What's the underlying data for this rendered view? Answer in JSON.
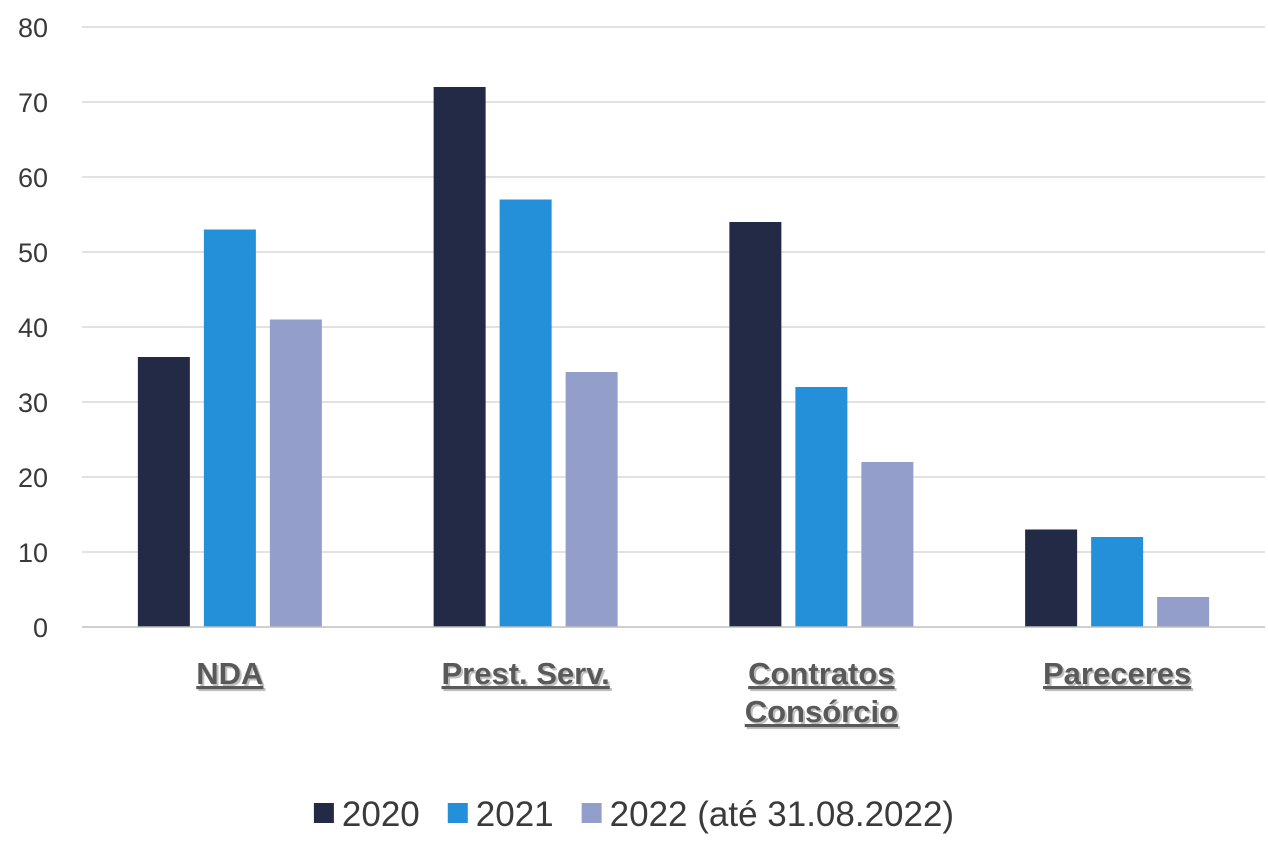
{
  "chart_data": {
    "type": "bar",
    "categories": [
      [
        "NDA"
      ],
      [
        "Prest. Serv."
      ],
      [
        "Contratos",
        "Consórcio"
      ],
      [
        "Pareceres"
      ]
    ],
    "series": [
      {
        "name": "2020",
        "values": [
          36,
          72,
          54,
          13
        ],
        "color": "#222a45"
      },
      {
        "name": "2021",
        "values": [
          53,
          57,
          32,
          12
        ],
        "color": "#2490da"
      },
      {
        "name": "2022 (até 31.08.2022)",
        "values": [
          41,
          34,
          22,
          4
        ],
        "color": "#949ecb"
      }
    ],
    "title": "",
    "xlabel": "",
    "ylabel": "",
    "ylim": [
      0,
      80
    ],
    "yticks": [
      0,
      10,
      20,
      30,
      40,
      50,
      60,
      70,
      80
    ],
    "grid": true,
    "legend": "bottom",
    "gridline_color": "#d9d9d9",
    "axis_line_color": "#bfbfbf"
  }
}
